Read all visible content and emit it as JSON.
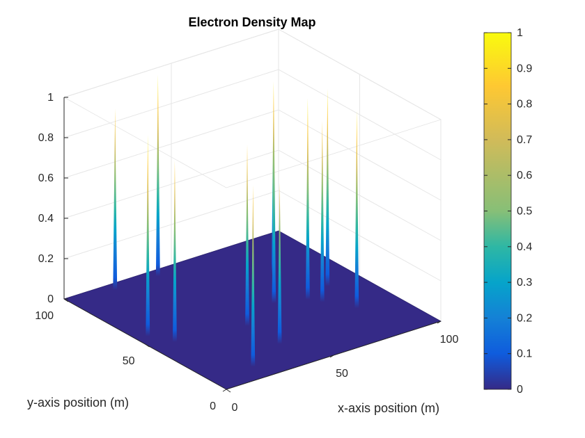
{
  "chart_data": {
    "type": "surface",
    "title": "Electron Density Map",
    "xlabel": "x-axis position (m)",
    "ylabel": "y-axis position (m)",
    "zlabel": "",
    "xlim": [
      0,
      100
    ],
    "ylim": [
      0,
      100
    ],
    "zlim": [
      0,
      1
    ],
    "xticks": [
      0,
      50,
      100
    ],
    "yticks": [
      0,
      50,
      100
    ],
    "zticks": [
      0,
      0.2,
      0.4,
      0.6,
      0.8,
      1
    ],
    "grid": true,
    "colormap": "parula",
    "colorbar": {
      "limits": [
        0,
        1
      ],
      "ticks": [
        0,
        0.1,
        0.2,
        0.3,
        0.4,
        0.5,
        0.6,
        0.7,
        0.8,
        0.9,
        1
      ]
    },
    "peaks": [
      {
        "x": 20,
        "y": 95,
        "value": 0.9
      },
      {
        "x": 40,
        "y": 95,
        "value": 1.0
      },
      {
        "x": 85,
        "y": 50,
        "value": 0.98
      },
      {
        "x": 75,
        "y": 70,
        "value": 0.96
      },
      {
        "x": 82,
        "y": 28,
        "value": 0.98
      },
      {
        "x": 75,
        "y": 40,
        "value": 0.9
      },
      {
        "x": 72,
        "y": 45,
        "value": 1.0
      },
      {
        "x": 60,
        "y": 50,
        "value": 0.72
      },
      {
        "x": 10,
        "y": 45,
        "value": 0.9
      },
      {
        "x": 5,
        "y": 55,
        "value": 1.0
      },
      {
        "x": 20,
        "y": 10,
        "value": 0.9
      },
      {
        "x": 40,
        "y": 20,
        "value": 0.8
      },
      {
        "x": 40,
        "y": 40,
        "value": 0.9
      }
    ]
  }
}
